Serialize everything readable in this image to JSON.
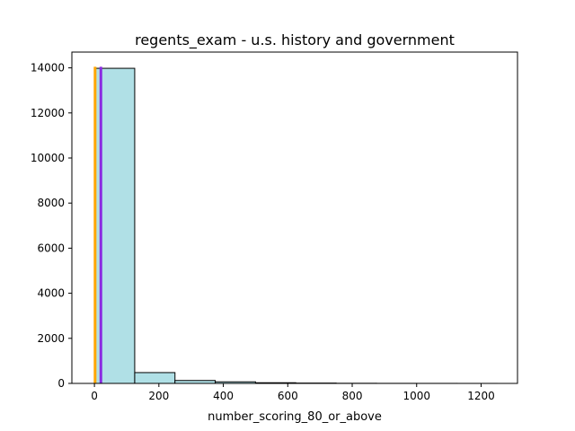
{
  "chart_data": {
    "type": "bar",
    "title": "regents_exam - u.s. history and government",
    "xlabel": "number_scoring_80_or_above",
    "ylabel": "",
    "xlim": [
      -70,
      1313
    ],
    "ylim": [
      0,
      14700
    ],
    "x_ticks": [
      0,
      200,
      400,
      600,
      800,
      1000,
      1200
    ],
    "y_ticks": [
      0,
      2000,
      4000,
      6000,
      8000,
      10000,
      12000,
      14000
    ],
    "bins": [
      {
        "start": 0,
        "end": 125,
        "count": 13980
      },
      {
        "start": 125,
        "end": 250,
        "count": 480
      },
      {
        "start": 250,
        "end": 375,
        "count": 130
      },
      {
        "start": 375,
        "end": 500,
        "count": 70
      },
      {
        "start": 500,
        "end": 625,
        "count": 30
      },
      {
        "start": 625,
        "end": 750,
        "count": 15
      },
      {
        "start": 750,
        "end": 875,
        "count": 6
      },
      {
        "start": 875,
        "end": 1000,
        "count": 3
      },
      {
        "start": 1000,
        "end": 1125,
        "count": 2
      },
      {
        "start": 1125,
        "end": 1250,
        "count": 1
      }
    ],
    "vertical_lines": [
      {
        "x": 2,
        "y_top": 14050,
        "color": "#ffa500"
      },
      {
        "x": 20,
        "y_top": 14050,
        "color": "#8a2be2"
      }
    ],
    "bar_color": "#b0e0e6",
    "edge_color": "#000000",
    "grid": false,
    "legend": false
  }
}
